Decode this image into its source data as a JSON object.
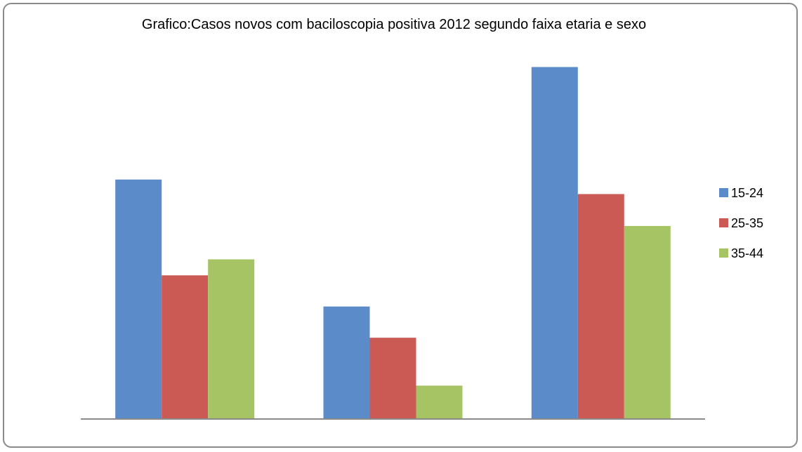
{
  "chart_data": {
    "type": "bar",
    "title": "Grafico:Casos novos com baciloscopia positiva 2012 segundo faixa etaria e sexo",
    "xlabel": "",
    "ylabel": "",
    "categories": [
      "",
      "",
      ""
    ],
    "series": [
      {
        "name": "15-24",
        "color": "#5B8BC9",
        "values": [
          330,
          155,
          485
        ]
      },
      {
        "name": "25-35",
        "color": "#CB5A55",
        "values": [
          198,
          112,
          310
        ]
      },
      {
        "name": "35-44",
        "color": "#A6C463",
        "values": [
          220,
          46,
          266
        ]
      }
    ],
    "ylim": [
      0,
      500
    ],
    "grid": false,
    "legend_position": "right"
  }
}
